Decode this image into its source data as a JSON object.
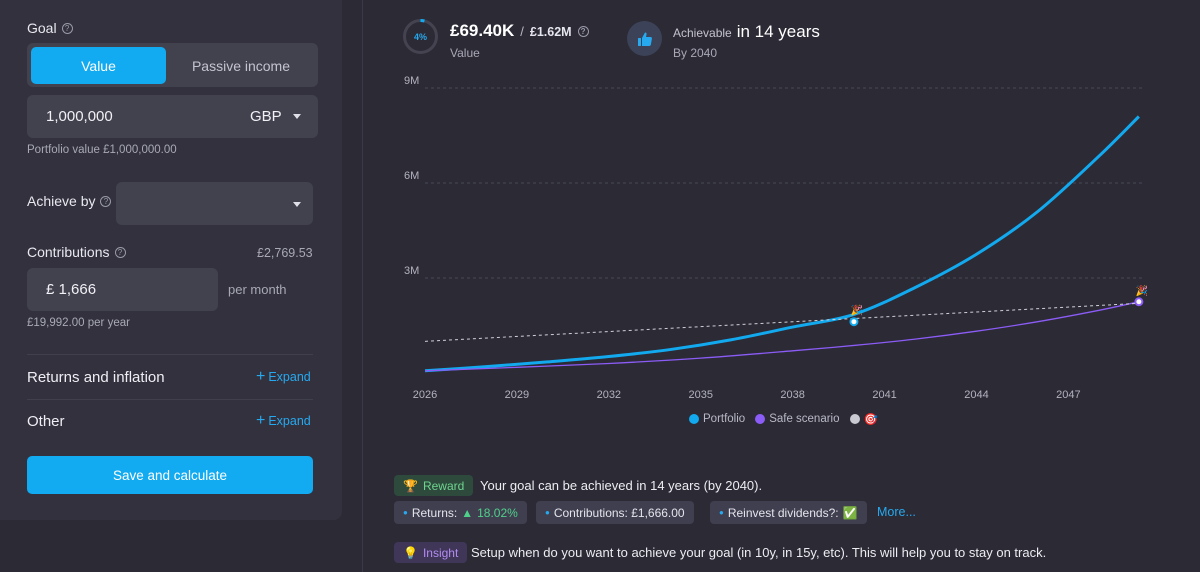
{
  "left": {
    "goal_label": "Goal",
    "goal_tabs": [
      "Value",
      "Passive income"
    ],
    "value_input": "1,000,000",
    "currency": "GBP",
    "portfolio_value_note": "Portfolio value £1,000,000.00",
    "achieve_by_label": "Achieve by",
    "achieve_by_value": "",
    "contributions_label": "Contributions",
    "contributions_total": "£2,769.53",
    "contribution_input": "£ 1,666",
    "per_month": "per month",
    "per_year_note": "£19,992.00 per year",
    "returns_title": "Returns and inflation",
    "other_title": "Other",
    "expand_label": "Expand",
    "save_label": "Save and calculate"
  },
  "summary": {
    "progress_percent": 4,
    "progress_label": "4%",
    "current_value": "£69.40K",
    "target_value": "£1.62M",
    "value_label": "Value",
    "achievable_label": "Achievable",
    "achievable_years": "in 14 years",
    "by_year": "By 2040"
  },
  "chart_data": {
    "type": "line",
    "x_ticks": [
      "2026",
      "2029",
      "2032",
      "2035",
      "2038",
      "2041",
      "2044",
      "2047"
    ],
    "y_ticks": [
      "9M",
      "6M",
      "3M"
    ],
    "ylim": [
      0,
      9000000
    ],
    "xlim": [
      2026,
      2049.5
    ],
    "series": [
      {
        "name": "Portfolio",
        "color": "#12a9ee",
        "x": [
          2026,
          2028,
          2030,
          2032,
          2034,
          2036,
          2038,
          2040,
          2042,
          2044,
          2046,
          2048,
          2049.3
        ],
        "y": [
          69400,
          200000,
          350000,
          520000,
          740000,
          1050000,
          1450000,
          1850000,
          2700000,
          3750000,
          5100000,
          6850000,
          8100000
        ]
      },
      {
        "name": "Safe scenario",
        "color": "#8b5cf6",
        "x": [
          2026,
          2029,
          2032,
          2035,
          2038,
          2040,
          2042,
          2044,
          2046,
          2048,
          2049.3
        ],
        "y": [
          69400,
          180000,
          300000,
          470000,
          700000,
          870000,
          1070000,
          1320000,
          1620000,
          1980000,
          2250000
        ]
      },
      {
        "name": "Target",
        "color": "#d0d0d8",
        "dashed": true,
        "x": [
          2026,
          2049.3
        ],
        "y": [
          1000000,
          2200000
        ]
      }
    ],
    "markers": [
      {
        "x": 2040,
        "y": 1620000,
        "label": "🎉"
      },
      {
        "x": 2049.3,
        "y": 2250000,
        "label": "🎉"
      }
    ],
    "legend": [
      "Portfolio",
      "Safe scenario",
      "🎯"
    ]
  },
  "insights": {
    "reward_badge": "Reward",
    "reward_text": "Your goal can be achieved in 14 years (by 2040).",
    "chips": [
      {
        "label": "Returns:",
        "value": "18.02%"
      },
      {
        "label": "Contributions: £1,666.00",
        "value": ""
      },
      {
        "label": "Reinvest dividends?:",
        "value": "✅"
      }
    ],
    "more": "More...",
    "insight_badge": "Insight",
    "insight_text": "Setup when do you want to achieve your goal (in 10y, in 15y, etc). This will help you to stay on track."
  },
  "colors": {
    "accent": "#12aaf0",
    "portfolio": "#12a9ee",
    "safe": "#8b5cf6",
    "reward": "#6fd48f",
    "insight": "#b48cf2"
  }
}
